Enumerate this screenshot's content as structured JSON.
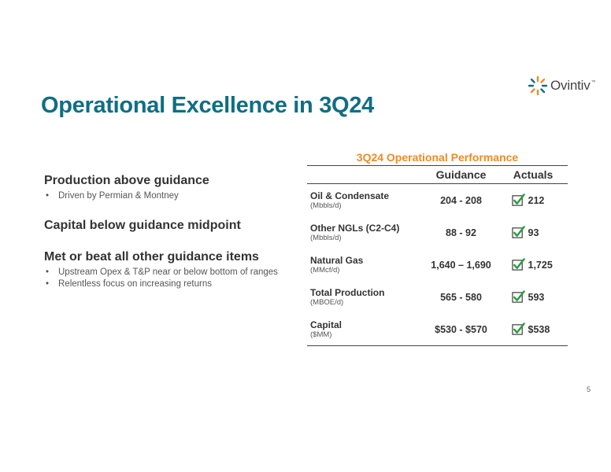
{
  "brand": {
    "logo_text": "Ovintiv",
    "trademark": "™",
    "accent": "#f08a24"
  },
  "title": "Operational Excellence in 3Q24",
  "left_panel": {
    "sections": [
      {
        "heading": "Production above guidance",
        "bullets": [
          "Driven by Permian & Montney"
        ]
      },
      {
        "heading": "Capital below guidance midpoint",
        "bullets": []
      },
      {
        "heading": "Met or beat all other guidance items",
        "bullets": [
          "Upstream Opex & T&P near or below bottom of ranges",
          "Relentless focus on increasing returns"
        ]
      }
    ]
  },
  "table": {
    "title": "3Q24 Operational Performance",
    "columns": {
      "guidance": "Guidance",
      "actuals": "Actuals"
    },
    "rows": [
      {
        "name": "Oil & Condensate",
        "unit": "(Mbbls/d)",
        "guidance": "204 - 208",
        "actual": "212"
      },
      {
        "name": "Other NGLs (C2-C4)",
        "unit": "(Mbbls/d)",
        "guidance": "88 - 92",
        "actual": "93"
      },
      {
        "name": "Natural Gas",
        "unit": "(MMcf/d)",
        "guidance": "1,640 – 1,690",
        "actual": "1,725"
      },
      {
        "name": "Total Production",
        "unit": "(MBOE/d)",
        "guidance": "565 - 580",
        "actual": "593"
      },
      {
        "name": "Capital",
        "unit": "($MM)",
        "guidance": "$530 - $570",
        "actual": "$538"
      }
    ],
    "check_icon": "checkmark-box-icon",
    "check_color": "#2a9d3f"
  },
  "page_number": "5"
}
